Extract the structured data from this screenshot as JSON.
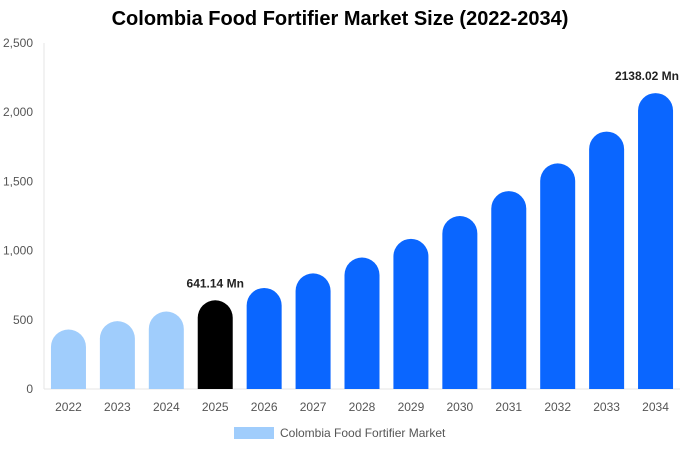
{
  "chart_data": {
    "type": "bar",
    "title": "Colombia Food Fortifier Market Size (2022-2034)",
    "xlabel": "",
    "ylabel": "",
    "ylim": [
      0,
      2500
    ],
    "yticks": [
      0,
      500,
      1000,
      1500,
      2000,
      2500
    ],
    "ytick_labels": [
      "0",
      "500",
      "1,000",
      "1,500",
      "2,000",
      "2,500"
    ],
    "categories": [
      "2022",
      "2023",
      "2024",
      "2025",
      "2026",
      "2027",
      "2028",
      "2029",
      "2030",
      "2031",
      "2032",
      "2033",
      "2034"
    ],
    "values": [
      430,
      490,
      560,
      641.14,
      730,
      835,
      950,
      1085,
      1250,
      1430,
      1630,
      1860,
      2138.02
    ],
    "bar_colors": [
      "#a0cdfc",
      "#a0cdfc",
      "#a0cdfc",
      "#000000",
      "#0a66ff",
      "#0a66ff",
      "#0a66ff",
      "#0a66ff",
      "#0a66ff",
      "#0a66ff",
      "#0a66ff",
      "#0a66ff",
      "#0a66ff"
    ],
    "data_labels": [
      {
        "index": 3,
        "text": "641.14 Mn"
      },
      {
        "index": 12,
        "text": "2138.02 Mn"
      }
    ],
    "legend": {
      "placement": "bottom-center",
      "entries": [
        {
          "name": "Colombia Food Fortifier Market",
          "color": "#a0cdfc"
        }
      ]
    },
    "grid": false
  }
}
